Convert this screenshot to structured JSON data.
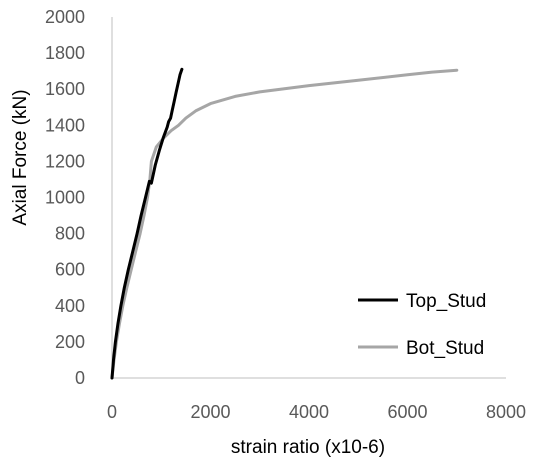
{
  "chart_data": {
    "type": "line",
    "title": "",
    "xlabel": "strain ratio (x10-6)",
    "ylabel": "Axial Force (kN)",
    "xlim": [
      0,
      8000
    ],
    "ylim": [
      0,
      2000
    ],
    "xticks": [
      0,
      2000,
      4000,
      6000,
      8000
    ],
    "yticks": [
      0,
      200,
      400,
      600,
      800,
      1000,
      1200,
      1400,
      1600,
      1800,
      2000
    ],
    "grid": false,
    "legend_position": "bottom-right",
    "series": [
      {
        "name": "Top_Stud",
        "color": "#000000",
        "points": [
          [
            0,
            0
          ],
          [
            30,
            100
          ],
          [
            70,
            200
          ],
          [
            120,
            300
          ],
          [
            180,
            400
          ],
          [
            250,
            500
          ],
          [
            330,
            600
          ],
          [
            420,
            700
          ],
          [
            510,
            800
          ],
          [
            590,
            900
          ],
          [
            680,
            1000
          ],
          [
            760,
            1090
          ],
          [
            800,
            1080
          ],
          [
            880,
            1180
          ],
          [
            960,
            1260
          ],
          [
            1040,
            1330
          ],
          [
            1120,
            1390
          ],
          [
            1150,
            1420
          ],
          [
            1190,
            1440
          ],
          [
            1220,
            1480
          ],
          [
            1260,
            1530
          ],
          [
            1300,
            1580
          ],
          [
            1340,
            1630
          ],
          [
            1380,
            1680
          ],
          [
            1420,
            1710
          ]
        ]
      },
      {
        "name": "Bot_Stud",
        "color": "#a6a6a6",
        "points": [
          [
            0,
            0
          ],
          [
            40,
            100
          ],
          [
            90,
            200
          ],
          [
            150,
            300
          ],
          [
            220,
            400
          ],
          [
            300,
            500
          ],
          [
            390,
            600
          ],
          [
            480,
            700
          ],
          [
            570,
            800
          ],
          [
            650,
            900
          ],
          [
            720,
            1000
          ],
          [
            770,
            1100
          ],
          [
            800,
            1200
          ],
          [
            900,
            1280
          ],
          [
            1050,
            1330
          ],
          [
            1200,
            1370
          ],
          [
            1350,
            1400
          ],
          [
            1500,
            1440
          ],
          [
            1700,
            1480
          ],
          [
            2000,
            1520
          ],
          [
            2500,
            1560
          ],
          [
            3000,
            1585
          ],
          [
            4000,
            1620
          ],
          [
            5000,
            1650
          ],
          [
            6000,
            1680
          ],
          [
            6500,
            1695
          ],
          [
            7000,
            1705
          ]
        ]
      }
    ]
  }
}
